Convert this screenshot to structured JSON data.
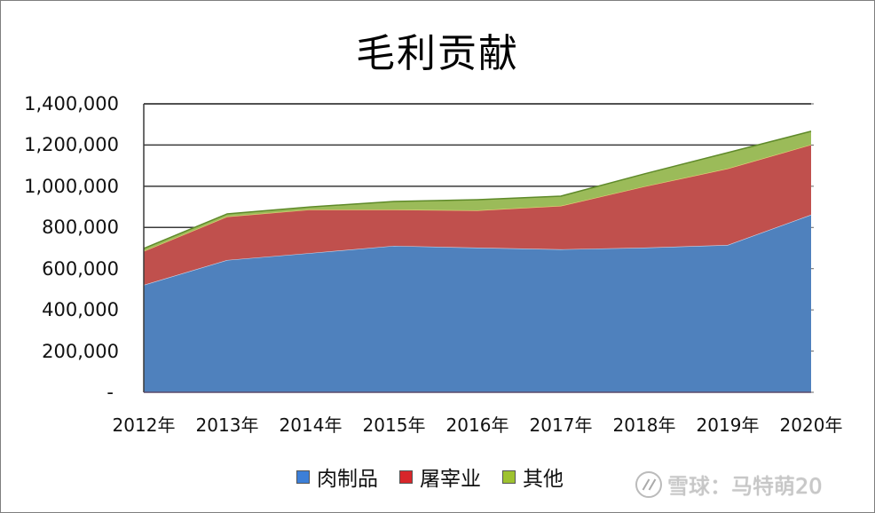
{
  "chart_data": {
    "type": "area",
    "stacked": true,
    "title": "毛利贡献",
    "xlabel": "",
    "ylabel": "",
    "categories": [
      "2012年",
      "2013年",
      "2014年",
      "2015年",
      "2016年",
      "2017年",
      "2018年",
      "2019年",
      "2020年"
    ],
    "series": [
      {
        "name": "肉制品",
        "color": "#4f81bd",
        "values": [
          521000,
          642000,
          676000,
          711000,
          702000,
          694000,
          702000,
          715000,
          862000
        ]
      },
      {
        "name": "屠宰业",
        "color": "#c0504d",
        "values": [
          164000,
          211000,
          211000,
          176000,
          181000,
          211000,
          297000,
          371000,
          340000
        ]
      },
      {
        "name": "其他",
        "color": "#9bbb59",
        "values": [
          13000,
          13000,
          13000,
          39000,
          52000,
          47000,
          61000,
          77000,
          65000
        ]
      }
    ],
    "ylim": [
      0,
      1400000
    ],
    "y_ticks": [
      0,
      200000,
      400000,
      600000,
      800000,
      1000000,
      1200000,
      1400000
    ],
    "y_tick_labels": [
      "-",
      "200,000",
      "400,000",
      "600,000",
      "800,000",
      "1,000,000",
      "1,200,000",
      "1,400,000"
    ],
    "grid": true,
    "legend_position": "bottom"
  },
  "title": "毛利贡献",
  "legend": [
    {
      "label": "肉制品",
      "color": "#3c7fd8"
    },
    {
      "label": "屠宰业",
      "color": "#d8262a"
    },
    {
      "label": "其他",
      "color": "#9ec22f"
    }
  ],
  "watermark": {
    "text": "雪球：马特萌20"
  }
}
